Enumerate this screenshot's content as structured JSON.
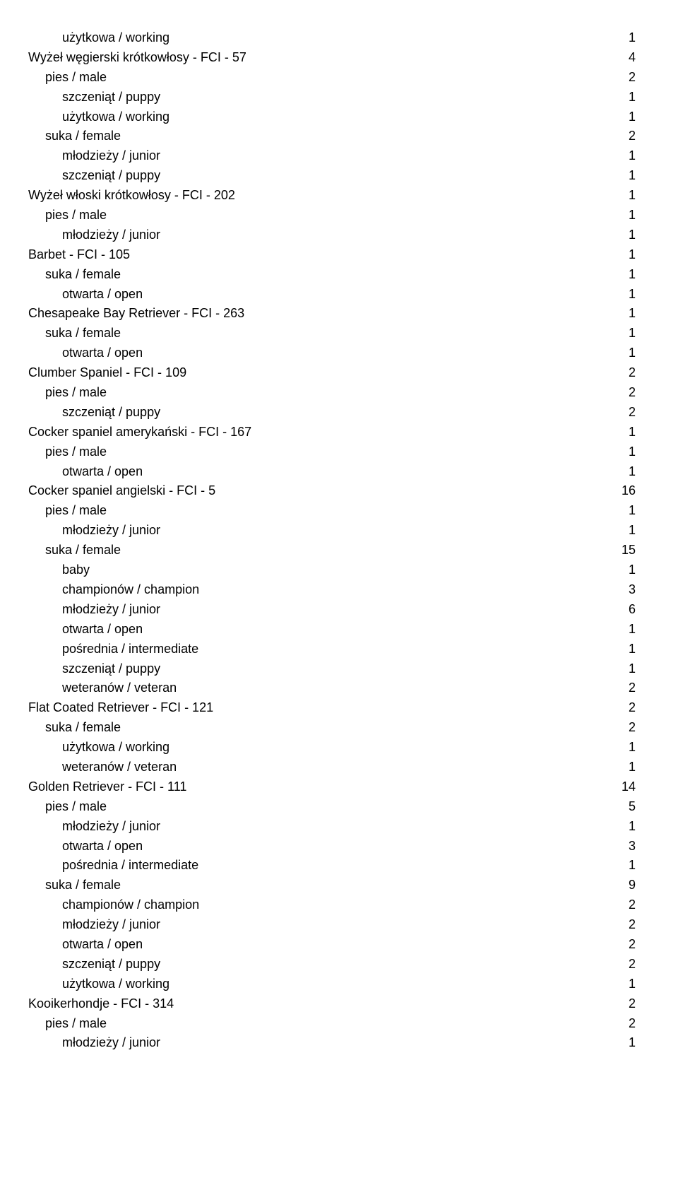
{
  "rows": [
    {
      "indent": 2,
      "label": "użytkowa / working",
      "count": 1
    },
    {
      "indent": 0,
      "label": "Wyżeł węgierski krótkowłosy - FCI - 57",
      "count": 4
    },
    {
      "indent": 1,
      "label": "pies / male",
      "count": 2
    },
    {
      "indent": 2,
      "label": "szczeniąt / puppy",
      "count": 1
    },
    {
      "indent": 2,
      "label": "użytkowa / working",
      "count": 1
    },
    {
      "indent": 1,
      "label": "suka / female",
      "count": 2
    },
    {
      "indent": 2,
      "label": "młodzieży / junior",
      "count": 1
    },
    {
      "indent": 2,
      "label": "szczeniąt / puppy",
      "count": 1
    },
    {
      "indent": 0,
      "label": "Wyżeł włoski krótkowłosy - FCI - 202",
      "count": 1
    },
    {
      "indent": 1,
      "label": "pies / male",
      "count": 1
    },
    {
      "indent": 2,
      "label": "młodzieży / junior",
      "count": 1
    },
    {
      "indent": 0,
      "label": "Barbet - FCI - 105",
      "count": 1
    },
    {
      "indent": 1,
      "label": "suka / female",
      "count": 1
    },
    {
      "indent": 2,
      "label": "otwarta / open",
      "count": 1
    },
    {
      "indent": 0,
      "label": "Chesapeake Bay Retriever - FCI - 263",
      "count": 1
    },
    {
      "indent": 1,
      "label": "suka / female",
      "count": 1
    },
    {
      "indent": 2,
      "label": "otwarta / open",
      "count": 1
    },
    {
      "indent": 0,
      "label": "Clumber Spaniel - FCI - 109",
      "count": 2
    },
    {
      "indent": 1,
      "label": "pies / male",
      "count": 2
    },
    {
      "indent": 2,
      "label": "szczeniąt / puppy",
      "count": 2
    },
    {
      "indent": 0,
      "label": "Cocker spaniel amerykański - FCI - 167",
      "count": 1
    },
    {
      "indent": 1,
      "label": "pies / male",
      "count": 1
    },
    {
      "indent": 2,
      "label": "otwarta / open",
      "count": 1
    },
    {
      "indent": 0,
      "label": "Cocker spaniel angielski - FCI - 5",
      "count": 16
    },
    {
      "indent": 1,
      "label": "pies / male",
      "count": 1
    },
    {
      "indent": 2,
      "label": "młodzieży / junior",
      "count": 1
    },
    {
      "indent": 1,
      "label": "suka / female",
      "count": 15
    },
    {
      "indent": 2,
      "label": "baby",
      "count": 1
    },
    {
      "indent": 2,
      "label": "championów / champion",
      "count": 3
    },
    {
      "indent": 2,
      "label": "młodzieży / junior",
      "count": 6
    },
    {
      "indent": 2,
      "label": "otwarta / open",
      "count": 1
    },
    {
      "indent": 2,
      "label": "pośrednia / intermediate",
      "count": 1
    },
    {
      "indent": 2,
      "label": "szczeniąt / puppy",
      "count": 1
    },
    {
      "indent": 2,
      "label": "weteranów / veteran",
      "count": 2
    },
    {
      "indent": 0,
      "label": "Flat Coated Retriever - FCI - 121",
      "count": 2
    },
    {
      "indent": 1,
      "label": "suka / female",
      "count": 2
    },
    {
      "indent": 2,
      "label": "użytkowa / working",
      "count": 1
    },
    {
      "indent": 2,
      "label": "weteranów / veteran",
      "count": 1
    },
    {
      "indent": 0,
      "label": "Golden Retriever - FCI - 111",
      "count": 14
    },
    {
      "indent": 1,
      "label": "pies / male",
      "count": 5
    },
    {
      "indent": 2,
      "label": "młodzieży / junior",
      "count": 1
    },
    {
      "indent": 2,
      "label": "otwarta / open",
      "count": 3
    },
    {
      "indent": 2,
      "label": "pośrednia / intermediate",
      "count": 1
    },
    {
      "indent": 1,
      "label": "suka / female",
      "count": 9
    },
    {
      "indent": 2,
      "label": "championów / champion",
      "count": 2
    },
    {
      "indent": 2,
      "label": "młodzieży / junior",
      "count": 2
    },
    {
      "indent": 2,
      "label": "otwarta / open",
      "count": 2
    },
    {
      "indent": 2,
      "label": "szczeniąt / puppy",
      "count": 2
    },
    {
      "indent": 2,
      "label": "użytkowa / working",
      "count": 1
    },
    {
      "indent": 0,
      "label": "Kooikerhondje - FCI - 314",
      "count": 2
    },
    {
      "indent": 1,
      "label": "pies / male",
      "count": 2
    },
    {
      "indent": 2,
      "label": "młodzieży / junior",
      "count": 1
    }
  ]
}
